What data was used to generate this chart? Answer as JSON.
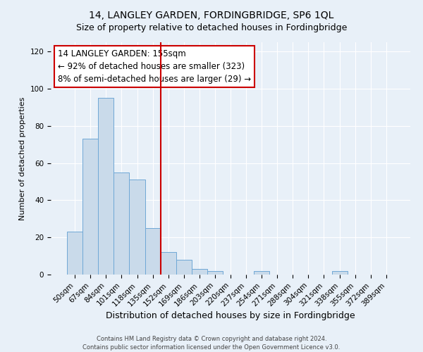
{
  "title": "14, LANGLEY GARDEN, FORDINGBRIDGE, SP6 1QL",
  "subtitle": "Size of property relative to detached houses in Fordingbridge",
  "xlabel": "Distribution of detached houses by size in Fordingbridge",
  "ylabel": "Number of detached properties",
  "bar_labels": [
    "50sqm",
    "67sqm",
    "84sqm",
    "101sqm",
    "118sqm",
    "135sqm",
    "152sqm",
    "169sqm",
    "186sqm",
    "203sqm",
    "220sqm",
    "237sqm",
    "254sqm",
    "271sqm",
    "288sqm",
    "304sqm",
    "321sqm",
    "338sqm",
    "355sqm",
    "372sqm",
    "389sqm"
  ],
  "bar_values": [
    23,
    73,
    95,
    55,
    51,
    25,
    12,
    8,
    3,
    2,
    0,
    0,
    2,
    0,
    0,
    0,
    0,
    2,
    0,
    0,
    0
  ],
  "bar_color": "#c9daea",
  "bar_edge_color": "#6fa8d6",
  "vline_color": "#cc0000",
  "annotation_line1": "14 LANGLEY GARDEN: 155sqm",
  "annotation_line2": "← 92% of detached houses are smaller (323)",
  "annotation_line3": "8% of semi-detached houses are larger (29) →",
  "annotation_box_color": "#ffffff",
  "annotation_box_edge_color": "#cc0000",
  "ylim": [
    0,
    125
  ],
  "yticks": [
    0,
    20,
    40,
    60,
    80,
    100,
    120
  ],
  "background_color": "#e8f0f8",
  "footer_line1": "Contains HM Land Registry data © Crown copyright and database right 2024.",
  "footer_line2": "Contains public sector information licensed under the Open Government Licence v3.0.",
  "title_fontsize": 10,
  "xlabel_fontsize": 9,
  "ylabel_fontsize": 8,
  "tick_fontsize": 7.5,
  "annotation_fontsize": 8.5,
  "footer_fontsize": 6
}
